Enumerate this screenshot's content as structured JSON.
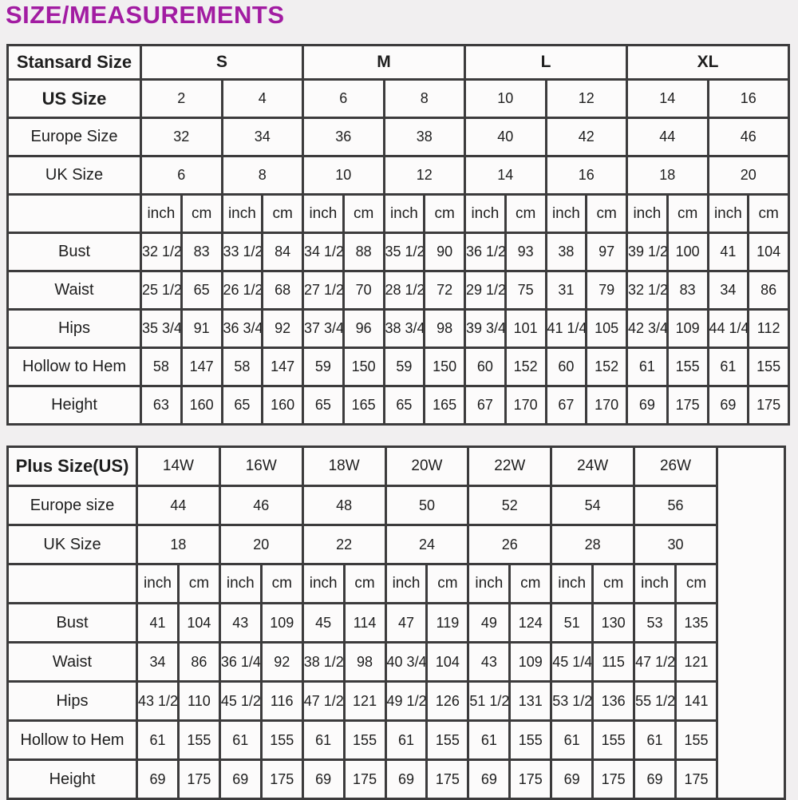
{
  "page_title": "SIZE/MEASUREMENTS",
  "colors": {
    "title_text": "#a21ca2",
    "table_border": "#3c3b3c",
    "page_background": "#f1eff0",
    "cell_background": "#fcfbfb"
  },
  "standard_table": {
    "header_label": "Stansard Size",
    "size_groups": [
      "S",
      "M",
      "L",
      "XL"
    ],
    "pair_rows": [
      {
        "label": "US Size",
        "bold": true,
        "values": [
          "2",
          "4",
          "6",
          "8",
          "10",
          "12",
          "14",
          "16"
        ]
      },
      {
        "label": "Europe Size",
        "bold": false,
        "values": [
          "32",
          "34",
          "36",
          "38",
          "40",
          "42",
          "44",
          "46"
        ]
      },
      {
        "label": "UK Size",
        "bold": false,
        "values": [
          "6",
          "8",
          "10",
          "12",
          "14",
          "16",
          "18",
          "20"
        ]
      }
    ],
    "unit_row": [
      "inch",
      "cm",
      "inch",
      "cm",
      "inch",
      "cm",
      "inch",
      "cm",
      "inch",
      "cm",
      "inch",
      "cm",
      "inch",
      "cm",
      "inch",
      "cm"
    ],
    "measurement_rows": [
      {
        "label": "Bust",
        "values": [
          "32 1/2",
          "83",
          "33 1/2",
          "84",
          "34 1/2",
          "88",
          "35 1/2",
          "90",
          "36 1/2",
          "93",
          "38",
          "97",
          "39 1/2",
          "100",
          "41",
          "104"
        ]
      },
      {
        "label": "Waist",
        "values": [
          "25 1/2",
          "65",
          "26 1/2",
          "68",
          "27 1/2",
          "70",
          "28 1/2",
          "72",
          "29 1/2",
          "75",
          "31",
          "79",
          "32 1/2",
          "83",
          "34",
          "86"
        ]
      },
      {
        "label": "Hips",
        "values": [
          "35 3/4",
          "91",
          "36 3/4",
          "92",
          "37 3/4",
          "96",
          "38 3/4",
          "98",
          "39 3/4",
          "101",
          "41 1/4",
          "105",
          "42 3/4",
          "109",
          "44 1/4",
          "112"
        ]
      },
      {
        "label": "Hollow to Hem",
        "values": [
          "58",
          "147",
          "58",
          "147",
          "59",
          "150",
          "59",
          "150",
          "60",
          "152",
          "60",
          "152",
          "61",
          "155",
          "61",
          "155"
        ]
      },
      {
        "label": "Height",
        "values": [
          "63",
          "160",
          "65",
          "160",
          "65",
          "165",
          "65",
          "165",
          "67",
          "170",
          "67",
          "170",
          "69",
          "175",
          "69",
          "175"
        ]
      }
    ]
  },
  "plus_table": {
    "header_label": "Plus Size(US)",
    "size_groups": [
      "14W",
      "16W",
      "18W",
      "20W",
      "22W",
      "24W",
      "26W"
    ],
    "pair_rows": [
      {
        "label": "Europe size",
        "bold": false,
        "values": [
          "44",
          "46",
          "48",
          "50",
          "52",
          "54",
          "56"
        ]
      },
      {
        "label": "UK Size",
        "bold": false,
        "values": [
          "18",
          "20",
          "22",
          "24",
          "26",
          "28",
          "30"
        ]
      }
    ],
    "unit_row": [
      "inch",
      "cm",
      "inch",
      "cm",
      "inch",
      "cm",
      "inch",
      "cm",
      "inch",
      "cm",
      "inch",
      "cm",
      "inch",
      "cm"
    ],
    "measurement_rows": [
      {
        "label": "Bust",
        "values": [
          "41",
          "104",
          "43",
          "109",
          "45",
          "114",
          "47",
          "119",
          "49",
          "124",
          "51",
          "130",
          "53",
          "135"
        ]
      },
      {
        "label": "Waist",
        "values": [
          "34",
          "86",
          "36 1/4",
          "92",
          "38 1/2",
          "98",
          "40 3/4",
          "104",
          "43",
          "109",
          "45 1/4",
          "115",
          "47 1/2",
          "121"
        ]
      },
      {
        "label": "Hips",
        "values": [
          "43 1/2",
          "110",
          "45 1/2",
          "116",
          "47 1/2",
          "121",
          "49 1/2",
          "126",
          "51 1/2",
          "131",
          "53 1/2",
          "136",
          "55 1/2",
          "141"
        ]
      },
      {
        "label": "Hollow to Hem",
        "values": [
          "61",
          "155",
          "61",
          "155",
          "61",
          "155",
          "61",
          "155",
          "61",
          "155",
          "61",
          "155",
          "61",
          "155"
        ]
      },
      {
        "label": "Height",
        "values": [
          "69",
          "175",
          "69",
          "175",
          "69",
          "175",
          "69",
          "175",
          "69",
          "175",
          "69",
          "175",
          "69",
          "175"
        ]
      }
    ]
  }
}
